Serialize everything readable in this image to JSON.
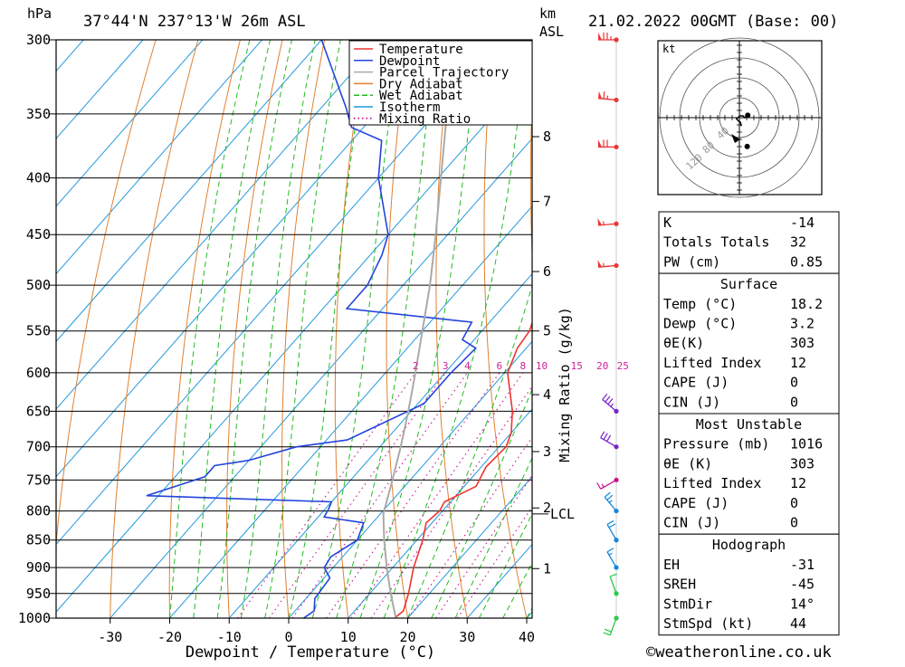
{
  "header": {
    "pressure_unit": "hPa",
    "location": "37°44'N  237°13'W  26m  ASL",
    "height_unit": "km",
    "height_unit2": "ASL",
    "datetime": "21.02.2022  00GMT  (Base: 00)"
  },
  "footer": {
    "credit": "©weatheronline.co.uk"
  },
  "colors": {
    "temperature": "#ee3333",
    "dewpoint": "#2244dd",
    "parcel": "#aaaaaa",
    "dry_adiabat": "#e08030",
    "wet_adiabat": "#22bb22",
    "isotherm": "#2299dd",
    "mixing_ratio": "#cc2299"
  },
  "chart_data": {
    "type": "line",
    "title": "",
    "xlabel": "Dewpoint / Temperature (°C)",
    "ylabel": "hPa",
    "y2label": "Mixing Ratio (g/kg)",
    "xlim": [
      -40,
      40
    ],
    "ylim": [
      1000,
      300
    ],
    "x_ticks": [
      -30,
      -20,
      -10,
      0,
      10,
      20,
      30,
      40
    ],
    "y_ticks": [
      300,
      350,
      400,
      450,
      500,
      550,
      600,
      650,
      700,
      750,
      800,
      850,
      900,
      950,
      1000
    ],
    "km_ticks": [
      {
        "label": "8",
        "p": 367
      },
      {
        "label": "7",
        "p": 420
      },
      {
        "label": "6",
        "p": 486
      },
      {
        "label": "5",
        "p": 550
      },
      {
        "label": "4",
        "p": 628
      },
      {
        "label": "3",
        "p": 707
      },
      {
        "label": "2",
        "p": 795
      },
      {
        "label": "1",
        "p": 902
      }
    ],
    "lcl": {
      "label": "LCL",
      "p": 805
    },
    "mixing_ratio_labels": [
      "2",
      "3",
      "4",
      "6",
      "8",
      "10",
      "15",
      "20",
      "25"
    ],
    "legend": {
      "placement": "top-right",
      "entries": [
        "Temperature",
        "Dewpoint",
        "Parcel Trajectory",
        "Dry Adiabat",
        "Wet Adiabat",
        "Isotherm",
        "Mixing Ratio"
      ]
    },
    "series": [
      {
        "name": "Temperature",
        "points": [
          {
            "p": 1000,
            "t": 17.8
          },
          {
            "p": 985,
            "t": 18.2
          },
          {
            "p": 950,
            "t": 16.5
          },
          {
            "p": 900,
            "t": 13.5
          },
          {
            "p": 850,
            "t": 11.0
          },
          {
            "p": 820,
            "t": 9.0
          },
          {
            "p": 800,
            "t": 9.5
          },
          {
            "p": 785,
            "t": 9.0
          },
          {
            "p": 760,
            "t": 12.0
          },
          {
            "p": 730,
            "t": 10.8
          },
          {
            "p": 700,
            "t": 11.2
          },
          {
            "p": 680,
            "t": 10.0
          },
          {
            "p": 650,
            "t": 7.0
          },
          {
            "p": 600,
            "t": 0.5
          },
          {
            "p": 570,
            "t": -1.5
          },
          {
            "p": 550,
            "t": -2.0
          },
          {
            "p": 520,
            "t": -4.5
          },
          {
            "p": 500,
            "t": -7.5
          },
          {
            "p": 450,
            "t": -14.5
          },
          {
            "p": 400,
            "t": -23.0
          },
          {
            "p": 370,
            "t": -27.5
          },
          {
            "p": 350,
            "t": -29.5
          },
          {
            "p": 300,
            "t": -38.0
          }
        ]
      },
      {
        "name": "Dewpoint",
        "points": [
          {
            "p": 1000,
            "t": 2.5
          },
          {
            "p": 985,
            "t": 3.2
          },
          {
            "p": 960,
            "t": 1.5
          },
          {
            "p": 920,
            "t": 1.0
          },
          {
            "p": 900,
            "t": -1.5
          },
          {
            "p": 880,
            "t": -2.0
          },
          {
            "p": 850,
            "t": 0.0
          },
          {
            "p": 820,
            "t": -1.5
          },
          {
            "p": 810,
            "t": -9.0
          },
          {
            "p": 795,
            "t": -9.5
          },
          {
            "p": 785,
            "t": -10.0
          },
          {
            "p": 775,
            "t": -42.0
          },
          {
            "p": 745,
            "t": -35.0
          },
          {
            "p": 728,
            "t": -35.0
          },
          {
            "p": 720,
            "t": -30.0
          },
          {
            "p": 700,
            "t": -24.0
          },
          {
            "p": 690,
            "t": -16.5
          },
          {
            "p": 640,
            "t": -9.0
          },
          {
            "p": 600,
            "t": -9.0
          },
          {
            "p": 570,
            "t": -8.5
          },
          {
            "p": 560,
            "t": -12.0
          },
          {
            "p": 540,
            "t": -13.0
          },
          {
            "p": 525,
            "t": -36.0
          },
          {
            "p": 500,
            "t": -36.0
          },
          {
            "p": 470,
            "t": -38.0
          },
          {
            "p": 450,
            "t": -40.0
          },
          {
            "p": 400,
            "t": -50.0
          },
          {
            "p": 370,
            "t": -55.0
          },
          {
            "p": 360,
            "t": -62.0
          },
          {
            "p": 345,
            "t": -66.0
          },
          {
            "p": 300,
            "t": -80.0
          }
        ]
      },
      {
        "name": "Parcel Trajectory",
        "points": [
          {
            "p": 1000,
            "t": 18.0
          },
          {
            "p": 950,
            "t": 13.5
          },
          {
            "p": 900,
            "t": 9.0
          },
          {
            "p": 850,
            "t": 4.5
          },
          {
            "p": 805,
            "t": 0.5
          },
          {
            "p": 750,
            "t": -3.0
          },
          {
            "p": 700,
            "t": -6.5
          },
          {
            "p": 650,
            "t": -10.5
          },
          {
            "p": 600,
            "t": -15.0
          },
          {
            "p": 550,
            "t": -20.0
          },
          {
            "p": 500,
            "t": -25.5
          },
          {
            "p": 450,
            "t": -32.0
          },
          {
            "p": 400,
            "t": -39.5
          },
          {
            "p": 350,
            "t": -48.0
          },
          {
            "p": 300,
            "t": -57.0
          }
        ]
      }
    ],
    "wind_profile": [
      {
        "p": 300,
        "dir": 270,
        "spd": 75
      },
      {
        "p": 340,
        "dir": 275,
        "spd": 65
      },
      {
        "p": 375,
        "dir": 270,
        "spd": 70
      },
      {
        "p": 440,
        "dir": 265,
        "spd": 55
      },
      {
        "p": 480,
        "dir": 265,
        "spd": 55
      },
      {
        "p": 650,
        "dir": 310,
        "spd": 35
      },
      {
        "p": 700,
        "dir": 300,
        "spd": 30
      },
      {
        "p": 750,
        "dir": 240,
        "spd": 15
      },
      {
        "p": 800,
        "dir": 320,
        "spd": 25
      },
      {
        "p": 850,
        "dir": 330,
        "spd": 20
      },
      {
        "p": 900,
        "dir": 330,
        "spd": 15
      },
      {
        "p": 950,
        "dir": 340,
        "spd": 10
      },
      {
        "p": 1000,
        "dir": 200,
        "spd": 20
      }
    ],
    "hodograph": {
      "unit": "kt",
      "ring_labels": [
        "40",
        "80",
        "120"
      ],
      "trace": [
        {
          "u": 3,
          "v": -14
        },
        {
          "u": 2,
          "v": -8
        },
        {
          "u": -2,
          "v": -5
        },
        {
          "u": -5,
          "v": -2
        },
        {
          "u": 1,
          "v": 3
        },
        {
          "u": 6,
          "v": 3
        },
        {
          "u": 9,
          "v": 0
        },
        {
          "u": 14,
          "v": 4
        }
      ],
      "storm_motion": {
        "u": 8,
        "v": -36
      }
    }
  },
  "indices": {
    "general": [
      {
        "label": "K",
        "value": "-14"
      },
      {
        "label": "Totals Totals",
        "value": "32"
      },
      {
        "label": "PW (cm)",
        "value": "0.85"
      }
    ],
    "surface_header": "Surface",
    "surface": [
      {
        "label": "Temp (°C)",
        "value": "18.2"
      },
      {
        "label": "Dewp (°C)",
        "value": "3.2"
      },
      {
        "label": "θE(K)",
        "value": "303"
      },
      {
        "label": "Lifted Index",
        "value": "12"
      },
      {
        "label": "CAPE (J)",
        "value": "0"
      },
      {
        "label": "CIN (J)",
        "value": "0"
      }
    ],
    "mu_header": "Most Unstable",
    "mu": [
      {
        "label": "Pressure (mb)",
        "value": "1016"
      },
      {
        "label": "θE (K)",
        "value": "303"
      },
      {
        "label": "Lifted Index",
        "value": "12"
      },
      {
        "label": "CAPE (J)",
        "value": "0"
      },
      {
        "label": "CIN (J)",
        "value": "0"
      }
    ],
    "hodo_header": "Hodograph",
    "hodo": [
      {
        "label": "EH",
        "value": "-31"
      },
      {
        "label": "SREH",
        "value": "-45"
      },
      {
        "label": "StmDir",
        "value": "14°"
      },
      {
        "label": "StmSpd (kt)",
        "value": "44"
      }
    ]
  }
}
